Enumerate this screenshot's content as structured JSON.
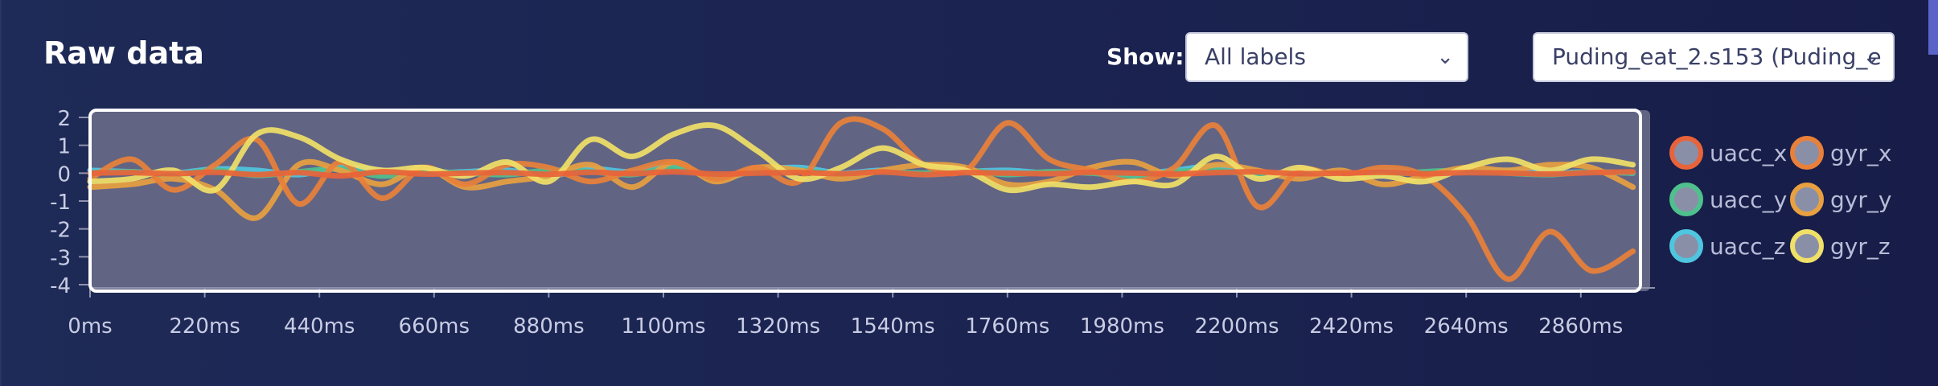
{
  "header": {
    "title": "Raw data",
    "show_label": "Show:",
    "label_filter": {
      "value": "All labels"
    },
    "sample_select": {
      "value": "Puding_eat_2.s153 (Puding_e"
    }
  },
  "chart_data": {
    "type": "line",
    "xlabel": "",
    "ylabel": "",
    "ylim": [
      -4.2,
      2.2
    ],
    "xlim": [
      0,
      2960
    ],
    "x_ticks": [
      "0ms",
      "220ms",
      "440ms",
      "660ms",
      "880ms",
      "1100ms",
      "1320ms",
      "1540ms",
      "1760ms",
      "1980ms",
      "2200ms",
      "2420ms",
      "2640ms",
      "2860ms"
    ],
    "y_ticks": [
      "2",
      "1",
      "0",
      "-1",
      "-2",
      "-3",
      "-4"
    ],
    "legend_position": "right",
    "x": [
      0,
      80,
      160,
      240,
      320,
      400,
      480,
      560,
      640,
      720,
      800,
      880,
      960,
      1040,
      1120,
      1200,
      1280,
      1360,
      1440,
      1520,
      1600,
      1680,
      1760,
      1840,
      1920,
      2000,
      2080,
      2160,
      2240,
      2320,
      2400,
      2480,
      2560,
      2640,
      2720,
      2800,
      2880,
      2960
    ],
    "series": [
      {
        "name": "uacc_x",
        "color": "#e8633a",
        "values": [
          0,
          0.02,
          -0.02,
          0.03,
          -0.05,
          0.02,
          -0.1,
          0.05,
          -0.03,
          0,
          0.02,
          -0.04,
          0.03,
          -0.02,
          0.05,
          -0.03,
          0,
          0.02,
          -0.02,
          0.04,
          -0.05,
          0.02,
          0,
          -0.02,
          0.03,
          0,
          -0.03,
          0.02,
          0.05,
          -0.02,
          0,
          0.03,
          -0.02,
          0.02,
          0,
          -0.03,
          0.02,
          0.05
        ]
      },
      {
        "name": "uacc_y",
        "color": "#4fc08d",
        "values": [
          0,
          0.05,
          -0.05,
          0.1,
          -0.08,
          0.05,
          0.15,
          -0.1,
          0.05,
          0,
          -0.05,
          0.1,
          0.05,
          -0.05,
          0.2,
          -0.1,
          0.05,
          0.1,
          -0.05,
          0.05,
          0,
          0.1,
          -0.05,
          0.05,
          0,
          -0.1,
          0.05,
          0.1,
          -0.05,
          0.05,
          0,
          -0.05,
          0.05,
          0.1,
          0,
          -0.05,
          0.05,
          0
        ]
      },
      {
        "name": "uacc_z",
        "color": "#4fc6e0",
        "values": [
          0.1,
          0.05,
          0,
          0.15,
          0.1,
          -0.05,
          0.2,
          0.1,
          0,
          0.05,
          0.1,
          -0.1,
          0.15,
          0.05,
          0.3,
          -0.2,
          0.1,
          0.2,
          0,
          0.1,
          -0.05,
          0.05,
          0.1,
          0,
          0.05,
          -0.05,
          0.1,
          0.25,
          0,
          0.05,
          -0.05,
          0.1,
          0,
          0.05,
          0.1,
          0,
          0.05,
          0
        ]
      },
      {
        "name": "gyr_x",
        "color": "#e8803a",
        "values": [
          -0.2,
          0.5,
          -0.6,
          0.3,
          1.2,
          -1.1,
          0.4,
          -0.9,
          0.2,
          -0.4,
          0.3,
          0.2,
          -0.3,
          0.1,
          0.4,
          -0.2,
          0.2,
          -0.3,
          1.8,
          1.6,
          0.3,
          0.1,
          1.8,
          0.5,
          0.1,
          -0.3,
          0.2,
          1.7,
          -1.2,
          0.1,
          -0.1,
          0.2,
          -0.1,
          -1.5,
          -3.8,
          -2.1,
          -3.5,
          -2.8
        ]
      },
      {
        "name": "gyr_y",
        "color": "#e8a040",
        "values": [
          -0.5,
          -0.4,
          -0.2,
          -0.6,
          -1.6,
          0.3,
          0.1,
          -0.4,
          0.2,
          -0.5,
          -0.3,
          -0.1,
          0.3,
          -0.5,
          0.4,
          -0.3,
          0.2,
          0.1,
          -0.2,
          0.1,
          0.3,
          0.2,
          -0.4,
          -0.3,
          0.2,
          0.4,
          -0.1,
          0.3,
          0.1,
          -0.2,
          0.1,
          -0.4,
          -0.1,
          0.2,
          0.1,
          0.3,
          0.2,
          -0.5
        ]
      },
      {
        "name": "gyr_z",
        "color": "#f0e068",
        "values": [
          -0.3,
          -0.2,
          0.1,
          -0.6,
          1.4,
          1.3,
          0.5,
          0.1,
          0.2,
          -0.1,
          0.4,
          -0.3,
          1.2,
          0.6,
          1.4,
          1.7,
          0.8,
          -0.2,
          0.2,
          0.9,
          0.3,
          0.1,
          -0.6,
          -0.4,
          -0.5,
          -0.3,
          -0.4,
          0.6,
          -0.2,
          0.2,
          -0.2,
          -0.1,
          -0.3,
          0.2,
          0.5,
          0.1,
          0.5,
          0.3
        ]
      }
    ]
  }
}
